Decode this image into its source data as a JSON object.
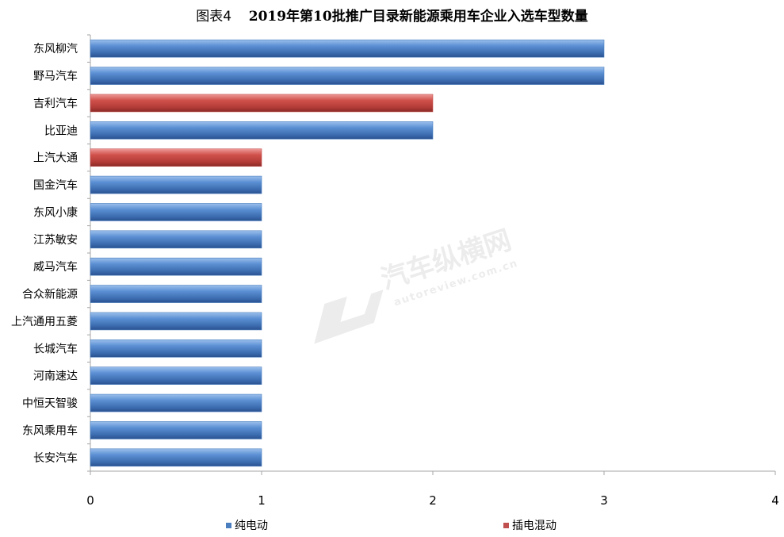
{
  "title_prefix": "图表4",
  "title_main": "2019年第10批推广目录新能源乘用车企业入选车型数量",
  "watermark": {
    "brand": "汽车纵横网",
    "url": "autoreview.com.cn"
  },
  "colors": {
    "pure_ev": "#4a7ebf",
    "phev": "#c0504d",
    "axis": "#a6a6a6"
  },
  "chart_data": {
    "type": "bar",
    "orientation": "horizontal",
    "title": "2019年第10批推广目录新能源乘用车企业入选车型数量",
    "categories": [
      "东风柳汽",
      "野马汽车",
      "吉利汽车",
      "比亚迪",
      "上汽大通",
      "国金汽车",
      "东风小康",
      "江苏敏安",
      "威马汽车",
      "合众新能源",
      "上汽通用五菱",
      "长城汽车",
      "河南速达",
      "中恒天智骏",
      "东风乘用车",
      "长安汽车"
    ],
    "values": [
      3,
      3,
      2,
      2,
      1,
      1,
      1,
      1,
      1,
      1,
      1,
      1,
      1,
      1,
      1,
      1
    ],
    "series_of_each": [
      "纯电动",
      "纯电动",
      "插电混动",
      "纯电动",
      "插电混动",
      "纯电动",
      "纯电动",
      "纯电动",
      "纯电动",
      "纯电动",
      "纯电动",
      "纯电动",
      "纯电动",
      "纯电动",
      "纯电动",
      "纯电动"
    ],
    "series": [
      {
        "name": "纯电动",
        "color": "#4a7ebf"
      },
      {
        "name": "插电混动",
        "color": "#c0504d"
      }
    ],
    "xlim": [
      0,
      4
    ],
    "xticks": [
      "0",
      "1",
      "2",
      "3",
      "4"
    ],
    "grid": false,
    "legend_position": "bottom"
  }
}
